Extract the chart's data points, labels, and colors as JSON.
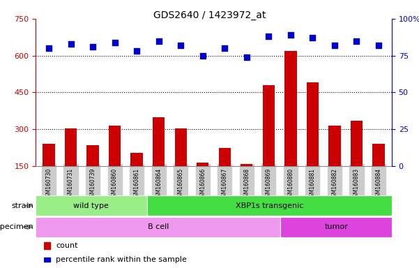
{
  "title": "GDS2640 / 1423972_at",
  "samples": [
    "GSM160730",
    "GSM160731",
    "GSM160739",
    "GSM160860",
    "GSM160861",
    "GSM160864",
    "GSM160865",
    "GSM160866",
    "GSM160867",
    "GSM160868",
    "GSM160869",
    "GSM160880",
    "GSM160881",
    "GSM160882",
    "GSM160883",
    "GSM160884"
  ],
  "counts": [
    240,
    305,
    235,
    315,
    205,
    350,
    305,
    165,
    225,
    160,
    480,
    620,
    490,
    315,
    335,
    240
  ],
  "percentiles": [
    80,
    83,
    81,
    84,
    78,
    85,
    82,
    75,
    80,
    74,
    88,
    89,
    87,
    82,
    85,
    82
  ],
  "ylim_left": [
    150,
    750
  ],
  "ylim_right": [
    0,
    100
  ],
  "yticks_left": [
    150,
    300,
    450,
    600,
    750
  ],
  "yticks_right": [
    0,
    25,
    50,
    75,
    100
  ],
  "bar_color": "#cc0000",
  "dot_color": "#0000cc",
  "bar_bottom": 150,
  "strain_groups": [
    {
      "label": "wild type",
      "start": 0,
      "end": 5,
      "color": "#99ee88"
    },
    {
      "label": "XBP1s transgenic",
      "start": 5,
      "end": 16,
      "color": "#44dd44"
    }
  ],
  "specimen_groups": [
    {
      "label": "B cell",
      "start": 0,
      "end": 11,
      "color": "#ee99ee"
    },
    {
      "label": "tumor",
      "start": 11,
      "end": 16,
      "color": "#dd44dd"
    }
  ],
  "legend_count_label": "count",
  "legend_pct_label": "percentile rank within the sample",
  "xlabel_strain": "strain",
  "xlabel_specimen": "specimen",
  "tick_bg_color": "#cccccc",
  "plot_bg": "#ffffff",
  "right_axis_color": "#0000cc",
  "left_axis_color": "#cc0000",
  "hgrid_color": "#000000",
  "hgrid_vals": [
    300,
    450,
    600
  ]
}
